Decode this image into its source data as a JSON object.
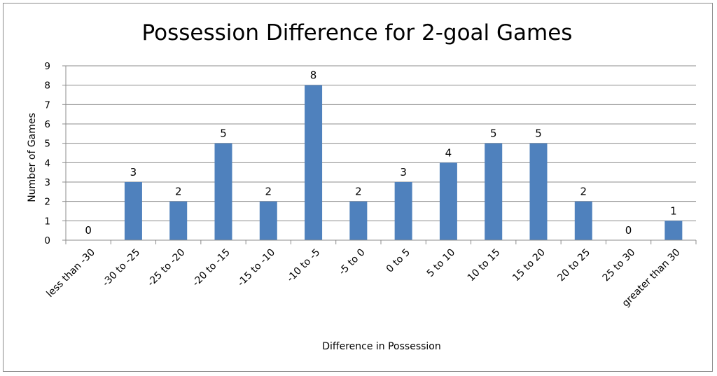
{
  "chart_data": {
    "type": "bar",
    "title": "Possession Difference for 2-goal Games",
    "xlabel": "Difference in Possession",
    "ylabel": "Number of Games",
    "ylim": [
      0,
      9
    ],
    "yticks": [
      0,
      1,
      2,
      3,
      4,
      5,
      6,
      7,
      8,
      9
    ],
    "grid": true,
    "legend": "none",
    "categories": [
      "less than -30",
      "-30 to -25",
      "-25 to -20",
      "-20 to -15",
      "-15 to -10",
      "-10 to -5",
      "-5 to 0",
      "0 to 5",
      "5 to 10",
      "10 to 15",
      "15 to 20",
      "20 to 25",
      "25 to 30",
      "greater than 30"
    ],
    "values": [
      0,
      3,
      2,
      5,
      2,
      8,
      2,
      3,
      4,
      5,
      5,
      2,
      0,
      1
    ],
    "bar_color": "#4f81bd",
    "grid_color": "#8c8c8c"
  }
}
